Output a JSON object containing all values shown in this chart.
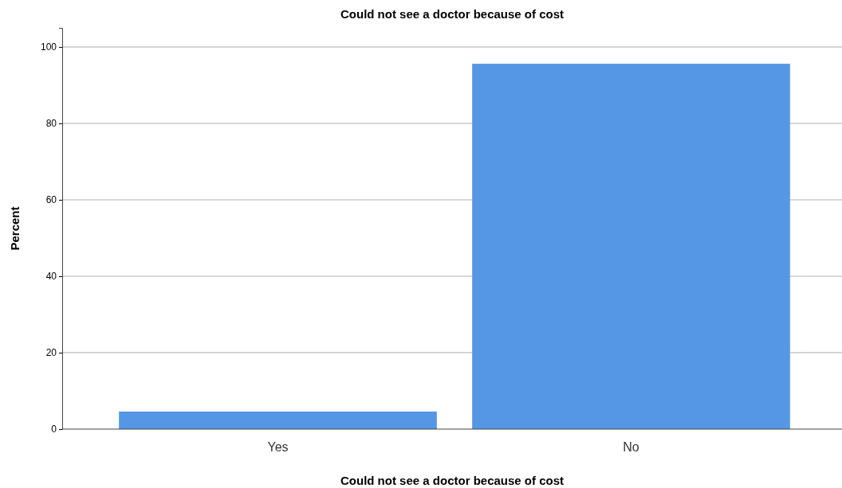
{
  "chart_data": {
    "type": "bar",
    "title": "Could not see a doctor because of cost",
    "xlabel": "Could not see a doctor because of cost",
    "ylabel": "Percent",
    "categories": [
      "Yes",
      "No"
    ],
    "values": [
      4.6,
      95.6
    ],
    "color": "#5597e5",
    "ylim": [
      0,
      105
    ],
    "yticks": [
      0,
      20,
      40,
      60,
      80,
      100
    ],
    "grid": "y",
    "legend": false
  }
}
